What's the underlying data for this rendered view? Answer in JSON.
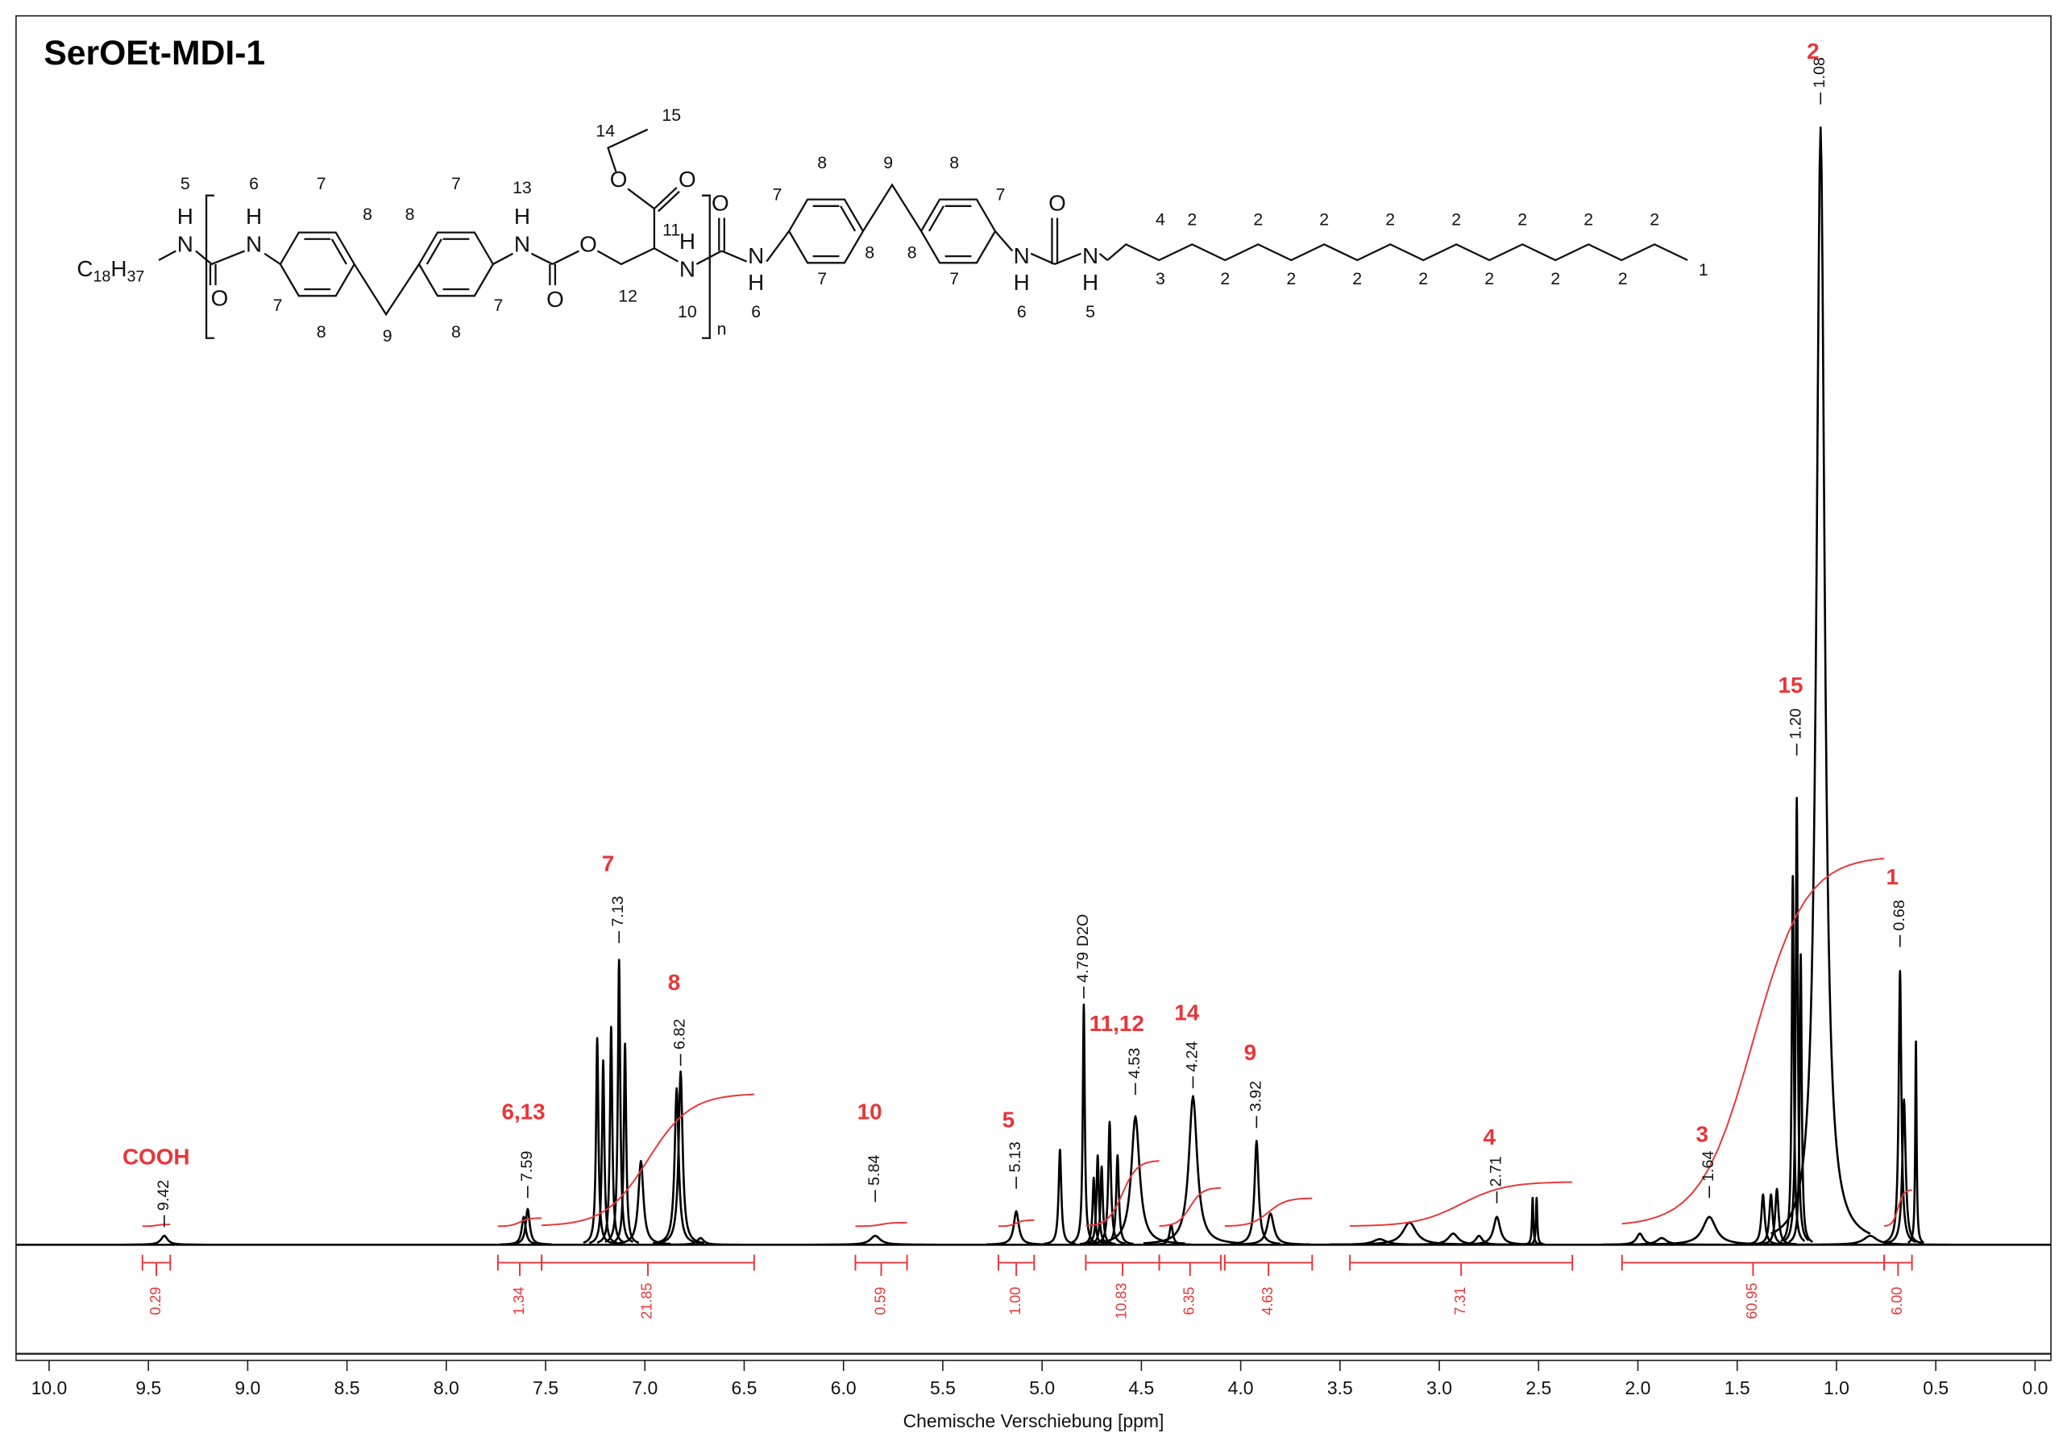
{
  "chart_data": {
    "type": "spectrum",
    "title": "SerOEt-MDI-1",
    "x_label": "Chemische Verschiebung [ppm]",
    "xlim": [
      10.0,
      0.0
    ],
    "xticks": [
      {
        "value": 10,
        "label": "10.0"
      },
      9.5,
      {
        "value": 9,
        "label": "9.0"
      },
      8.5,
      {
        "value": 8,
        "label": "8.0"
      },
      7.5,
      {
        "value": 7,
        "label": "7.0"
      },
      6.5,
      {
        "value": 6,
        "label": "6.0"
      },
      5.5,
      {
        "value": 5,
        "label": "5.0"
      },
      4.5,
      {
        "value": 4,
        "label": "4.0"
      },
      3.5,
      {
        "value": 3,
        "label": "3.0"
      },
      2.5,
      {
        "value": 2,
        "label": "2.0"
      },
      1.5,
      {
        "value": 1,
        "label": "1.0"
      },
      0.5,
      {
        "value": 0,
        "label": "0.0"
      }
    ],
    "ylim": [
      -10,
      110
    ],
    "color": "#000000",
    "integral_color": "#e8363a",
    "peaks": {
      "ppm": [
        9.42,
        7.59,
        7.61,
        7.24,
        7.21,
        7.17,
        7.13,
        7.1,
        7.02,
        6.84,
        6.82,
        6.72,
        5.84,
        5.13,
        4.91,
        4.79,
        4.74,
        4.72,
        4.7,
        4.66,
        4.62,
        4.53,
        4.35,
        4.24,
        3.92,
        3.85,
        3.3,
        3.15,
        2.93,
        2.8,
        2.71,
        2.53,
        2.51,
        1.99,
        1.88,
        1.64,
        1.37,
        1.33,
        1.3,
        1.22,
        1.2,
        1.18,
        1.08,
        0.83,
        0.68,
        0.66,
        0.6
      ],
      "intensity": [
        0.8,
        3.2,
        2.5,
        18.5,
        16.5,
        19.5,
        25.5,
        18,
        7.5,
        14,
        15.5,
        0.6,
        0.8,
        3,
        8.5,
        21.5,
        6,
        8,
        7,
        11,
        8,
        11.5,
        1.8,
        13.3,
        9.3,
        2.8,
        0.5,
        2,
        1,
        0.8,
        2.5,
        4.2,
        4.2,
        1,
        0.6,
        2.5,
        4.5,
        4.5,
        5,
        33,
        40,
        26,
        100,
        0.8,
        24.5,
        13,
        18.2
      ],
      "linewidth": [
        0.02,
        0.012,
        0.012,
        0.007,
        0.007,
        0.007,
        0.007,
        0.007,
        0.015,
        0.012,
        0.012,
        0.02,
        0.03,
        0.015,
        0.008,
        0.006,
        0.007,
        0.007,
        0.007,
        0.008,
        0.008,
        0.025,
        0.01,
        0.025,
        0.012,
        0.02,
        0.04,
        0.04,
        0.03,
        0.02,
        0.02,
        0.004,
        0.004,
        0.02,
        0.03,
        0.04,
        0.01,
        0.01,
        0.01,
        0.006,
        0.006,
        0.006,
        0.025,
        0.04,
        0.008,
        0.01,
        0.004
      ]
    },
    "peak_labels": {
      "values": [
        9.42,
        7.59,
        7.13,
        6.82,
        5.84,
        5.13,
        4.79,
        4.53,
        4.24,
        3.92,
        2.71,
        1.64,
        1.2,
        1.08,
        0.68
      ],
      "value_labels": [
        "9.42",
        "7.59",
        "7.13",
        "6.82",
        "5.84",
        "5.13",
        "4.79",
        "4.53",
        "4.24",
        "3.92",
        "2.71",
        "1.64",
        "1.20",
        "1.08",
        "0.68"
      ]
    },
    "solvent_annotation": "D2O",
    "assignments": [
      "COOH",
      "6,13",
      "7",
      "8",
      "10",
      "5",
      "11,12",
      "14",
      "9",
      "4",
      "3",
      "15",
      "2",
      "1"
    ],
    "integrals": {
      "from": [
        9.53,
        7.74,
        7.52,
        5.94,
        5.22,
        4.78,
        4.41,
        4.08,
        3.45,
        2.08,
        0.76
      ],
      "to": [
        9.39,
        7.52,
        6.45,
        5.68,
        5.04,
        4.41,
        4.1,
        3.64,
        2.33,
        0.76,
        0.62
      ],
      "values": [
        0.29,
        1.34,
        21.85,
        0.59,
        1,
        10.83,
        6.35,
        4.63,
        7.31,
        60.95,
        6
      ],
      "value_labels": [
        "0.29",
        "1.34",
        "21.85",
        "0.59",
        "1.00",
        "10.83",
        "6.35",
        "4.63",
        "7.31",
        "60.95",
        "6.00"
      ]
    }
  },
  "structure": {
    "formula": [
      "C",
      "18",
      "H",
      "37"
    ],
    "atoms": [
      "N",
      "H",
      "O",
      "N",
      "H",
      "N",
      "H",
      "O",
      "O",
      "O",
      "O",
      "N",
      "H",
      "O",
      "N",
      "H",
      "O",
      "N",
      "H",
      "N",
      "H",
      "n"
    ],
    "locants": [
      "5",
      "6",
      "7",
      "8",
      "7",
      "8",
      "9",
      "8",
      "7",
      "7",
      "8",
      "13",
      "12",
      "11",
      "14",
      "15",
      "10",
      "6",
      "7",
      "8",
      "8",
      "7",
      "9",
      "8",
      "7",
      "8",
      "7",
      "6",
      "5",
      "4",
      "3",
      "2",
      "2",
      "2",
      "2",
      "2",
      "2",
      "2",
      "2",
      "2",
      "2",
      "2",
      "2",
      "2",
      "2",
      "2",
      "1"
    ]
  }
}
